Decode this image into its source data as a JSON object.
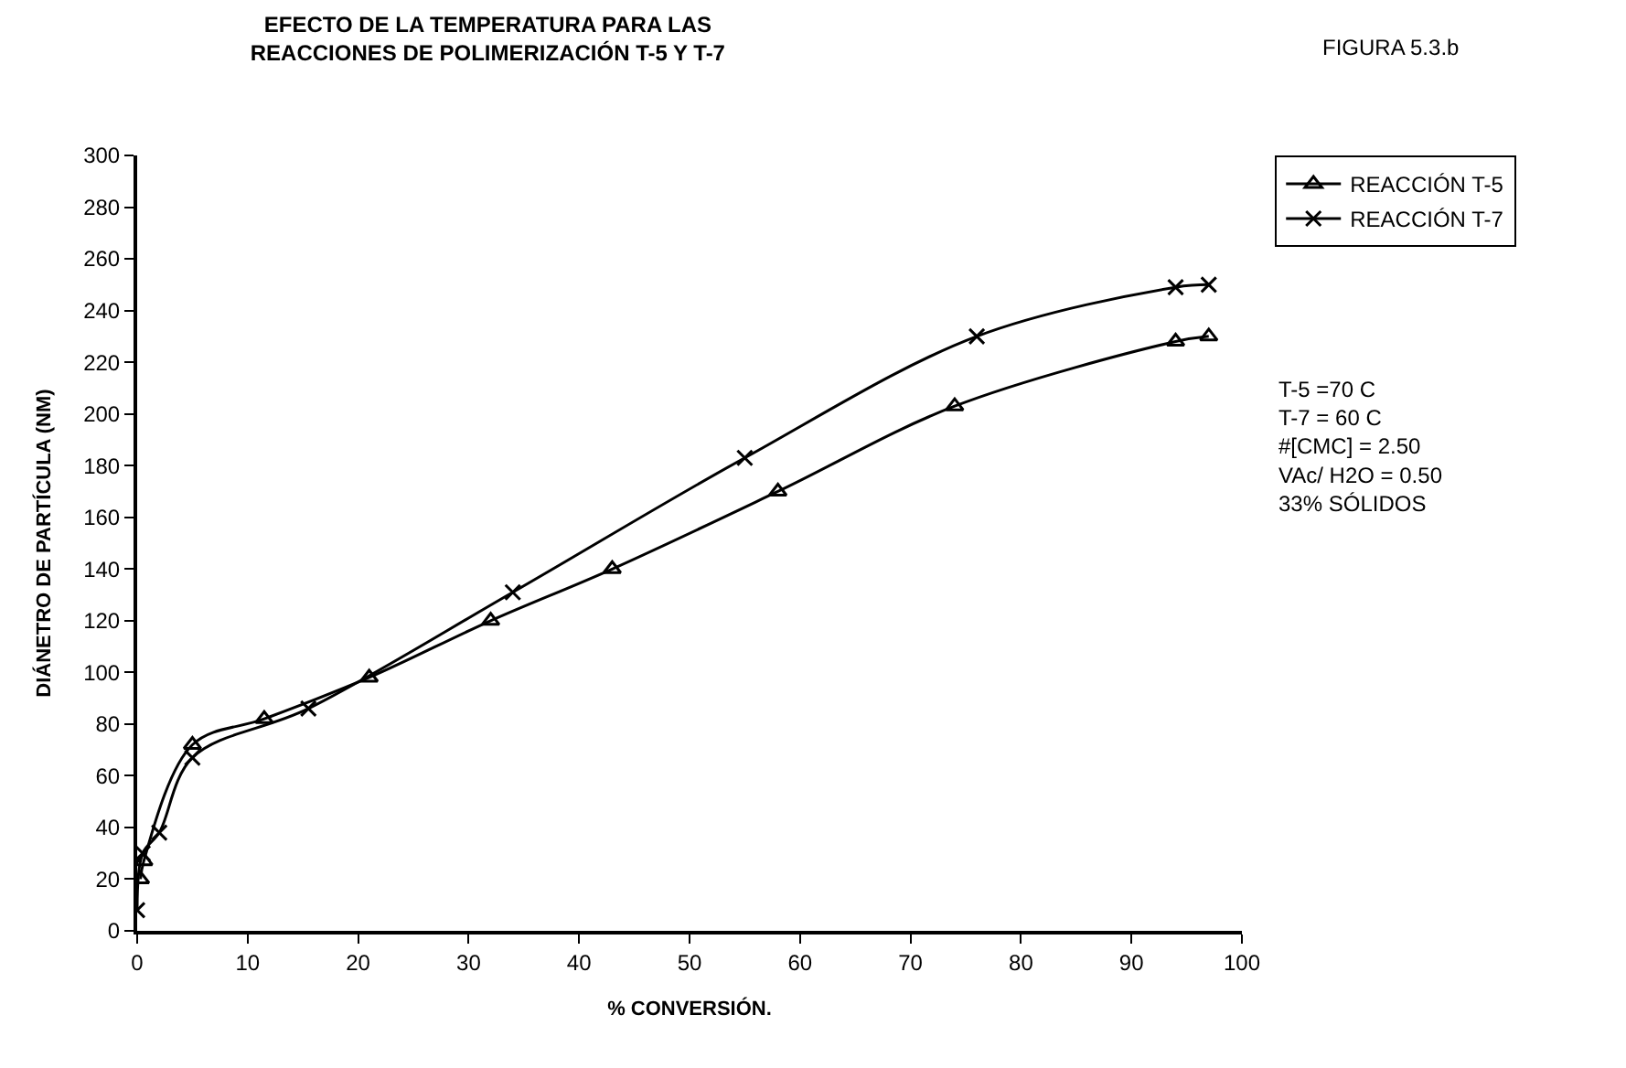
{
  "chart_data": {
    "type": "line",
    "title": "EFECTO DE LA TEMPERATURA PARA LAS\nREACCIONES DE POLIMERIZACIÓN T-5 Y T-7",
    "xlabel": "% CONVERSIÓN.",
    "ylabel": "DIÁNETRO DE PARTÍCULA (NM)",
    "xlim": [
      0,
      100
    ],
    "xticks": [
      0,
      10,
      20,
      30,
      40,
      50,
      60,
      70,
      80,
      90,
      100
    ],
    "ylim": [
      0,
      300
    ],
    "yticks": [
      0,
      20,
      40,
      60,
      80,
      100,
      120,
      140,
      160,
      180,
      200,
      220,
      240,
      260,
      280,
      300
    ],
    "legend": "top right",
    "series": [
      {
        "name": "REACCIÓN T-5",
        "color": "#000000",
        "marker": "triangle",
        "x": [
          0.3,
          0.6,
          5,
          11.5,
          21,
          32,
          43,
          58,
          74,
          94,
          97
        ],
        "values": [
          20,
          27,
          72,
          82,
          98,
          120,
          140,
          170,
          203,
          228,
          230
        ]
      },
      {
        "name": "REACCIÓN T-7",
        "color": "#000000",
        "marker": "cross",
        "x": [
          0,
          0.5,
          2,
          5,
          15.5,
          34,
          55,
          76,
          94,
          97
        ],
        "values": [
          8,
          30,
          38,
          67,
          86,
          131,
          183,
          230,
          249,
          250
        ]
      }
    ],
    "annotations": [
      "FIGURA 5.3.b",
      "T-5 =70 C",
      "T-7 = 60 C",
      "#[CMC] = 2.50",
      "VAc/ H2O = 0.50",
      "33% SÓLIDOS"
    ]
  }
}
